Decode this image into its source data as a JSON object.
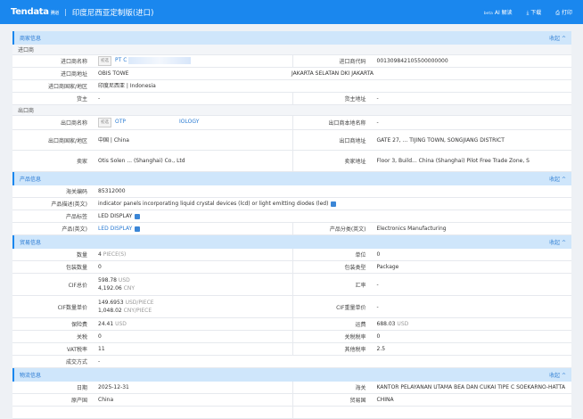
{
  "header": {
    "logo": "Tendata",
    "logo_sub": "腾道",
    "title": "印度尼西亚定制版(进口)",
    "ai_beta": "beta",
    "ai": "AI 解读",
    "download": "下载",
    "print": "打印"
  },
  "fold_label": "收起 ^",
  "merchant": {
    "title": "商家信息",
    "importer_title": "进口商",
    "importer_name_label": "进口商名称",
    "importer_tag": "初选",
    "importer_name": "PT C",
    "importer_id_label": "进口商代码",
    "importer_id": "001309842105500000000",
    "importer_addr_label": "进口商地址",
    "importer_addr": "OBIS TOWE",
    "importer_addr2": "JAKARTA SELATAN DKI JAKARTA",
    "importer_country_label": "进口商国家/地区",
    "importer_country": "印度尼西亚 | Indonesia",
    "owner_label": "货主",
    "owner": "-",
    "owner_addr_label": "货主地址",
    "owner_addr": "-",
    "exporter_title": "出口商",
    "exporter_name_label": "出口商名称",
    "exporter_tag": "初选",
    "exporter_name": "OTP",
    "exporter_name2": "IOLOGY",
    "exporter_local_label": "出口商本地名称",
    "exporter_local": "-",
    "exporter_country_label": "出口商国家/地区",
    "exporter_country": "中国 | China",
    "exporter_addr_label": "出口商地址",
    "exporter_addr": "GATE 27, ... TIJING TOWN, SONGJIANG DISTRICT",
    "seller_label": "卖家",
    "seller": "Otis Solen ... (Shanghai) Co., Ltd",
    "seller_addr_label": "卖家地址",
    "seller_addr": "Floor 3, Build... China (Shanghai) Pilot Free Trade Zone, S"
  },
  "product": {
    "title": "产品信息",
    "hs_label": "海关编码",
    "hs": "85312000",
    "desc_label": "产品描述(英文)",
    "desc": "indicator panels incorporating liquid crystal devices (lcd) or light emitting diodes (led)",
    "tag_label": "产品标签",
    "tag": "LED DISPLAY",
    "name_label": "产品(英文)",
    "name": "LED DISPLAY",
    "cat_label": "产品分类(英文)",
    "cat": "Electronics Manufacturing"
  },
  "trade": {
    "title": "贸易信息",
    "rows": [
      {
        "l": "数量",
        "v": "4",
        "u": "PIECE(S)",
        "rl": "单位",
        "rv": "0"
      },
      {
        "l": "包装数量",
        "v": "0",
        "rl": "包装类型",
        "rv": "Package"
      },
      {
        "l": "CIF总价",
        "v": "598.78",
        "u": "USD",
        "v2": "4,192.06",
        "u2": "CNY",
        "rl": "汇率",
        "rv": "-"
      },
      {
        "l": "CIF数量单价",
        "v": "149.6953",
        "u": "USD/PIECE",
        "v2": "1,048.02",
        "u2": "CNY/PIECE",
        "rl": "CIF重量单价",
        "rv": "-"
      },
      {
        "l": "保险费",
        "v": "24.41",
        "u": "USD",
        "rl": "运费",
        "rv": "688.03",
        "ru": "USD"
      },
      {
        "l": "关税",
        "v": "0",
        "rl": "关税税率",
        "rv": "0"
      },
      {
        "l": "VAT税率",
        "v": "11",
        "rl": "其他税率",
        "rv": "2.5"
      }
    ],
    "deal_label": "成交方式",
    "deal": "-"
  },
  "logistics": {
    "title": "物流信息",
    "date_label": "日期",
    "date": "2025-12-31",
    "customs_label": "海关",
    "customs": "KANTOR PELAYANAN UTAMA BEA DAN CUKAI TIPE C SOEKARNO-HATTA",
    "origin_label": "原产国",
    "origin": "China",
    "trade_country_label": "贸易国",
    "trade_country": "CHINA"
  }
}
